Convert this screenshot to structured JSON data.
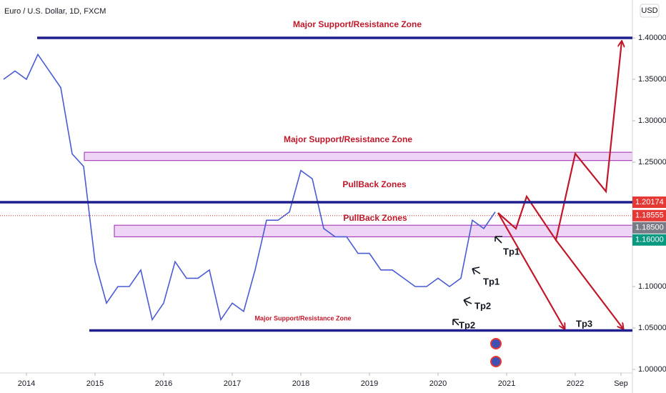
{
  "chart_data": {
    "type": "line",
    "title": "Euro / U.S. Dollar, 1D, FXCM",
    "currency": "USD",
    "color": "#4a5bd4",
    "categories": [
      null,
      null,
      "2014",
      null,
      null,
      null,
      null,
      null,
      "2015",
      null,
      null,
      null,
      null,
      null,
      "2016",
      null,
      null,
      null,
      null,
      null,
      "2017",
      null,
      null,
      null,
      null,
      null,
      "2018",
      null,
      null,
      null,
      null,
      null,
      "2019",
      null,
      null,
      null,
      null,
      null,
      "2020",
      null,
      null,
      null,
      null,
      null,
      "2021",
      null,
      null,
      null,
      null,
      null,
      "2022",
      null,
      null,
      null,
      "Sep",
      null
    ],
    "values": [
      1.35,
      1.36,
      1.35,
      1.38,
      1.36,
      1.34,
      1.26,
      1.245,
      1.13,
      1.08,
      1.1,
      1.1,
      1.12,
      1.06,
      1.08,
      1.13,
      1.11,
      1.11,
      1.12,
      1.06,
      1.08,
      1.07,
      1.12,
      1.18,
      1.18,
      1.19,
      1.24,
      1.23,
      1.17,
      1.16,
      1.16,
      1.14,
      1.14,
      1.12,
      1.12,
      1.11,
      1.1,
      1.1,
      1.11,
      1.1,
      1.11,
      1.18,
      1.17,
      1.19,
      null,
      null,
      null,
      null,
      null,
      null,
      null,
      null,
      null,
      null,
      null,
      null
    ],
    "ylim": [
      0.9957,
      1.4457
    ],
    "yticks": [
      {
        "value": 1.0,
        "label": "1.00000"
      },
      {
        "value": 1.05,
        "label": "1.05000"
      },
      {
        "value": 1.1,
        "label": "1.10000"
      },
      {
        "value": 1.25,
        "label": "1.25000"
      },
      {
        "value": 1.3,
        "label": "1.30000"
      },
      {
        "value": 1.35,
        "label": "1.35000"
      },
      {
        "value": 1.4,
        "label": "1.40000"
      }
    ],
    "grid": false,
    "lines": [
      {
        "value": 1.4,
        "color": "#1f1f8f"
      },
      {
        "value": 1.2017,
        "color": "#1f1f8f"
      },
      {
        "value": 1.047,
        "color": "#1f1f8f"
      }
    ],
    "zones": [
      {
        "low": 1.252,
        "high": 1.262,
        "color": "#e8c6f2"
      },
      {
        "low": 1.16,
        "high": 1.174,
        "color": "#e8c6f2"
      }
    ],
    "levels": [
      {
        "value": 1.20174,
        "label": "1.20174",
        "color": "#e53935"
      },
      {
        "value": 1.18555,
        "label": "1.18555",
        "color": "#e53935"
      },
      {
        "value": 1.185,
        "label": "1.18500",
        "color": "#787b86"
      },
      {
        "value": 1.16,
        "label": "1.16000",
        "color": "#089981"
      }
    ],
    "annotations": [
      "Major Support/Resistance Zone",
      "Major Support/Resistance Zone",
      "PullBack Zones",
      "PullBack Zones",
      "Major Support/Resistance Zone",
      "Tp1",
      "Tp1",
      "Tp2",
      "Tp2",
      "Tp3"
    ]
  }
}
